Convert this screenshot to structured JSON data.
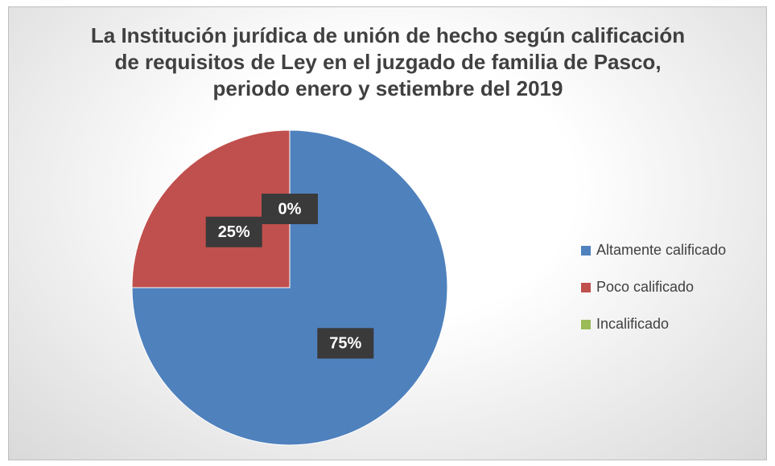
{
  "chart_data": {
    "type": "pie",
    "title": "La Institución jurídica de unión de hecho según calificación de requisitos de Ley en el juzgado de familia de Pasco, periodo enero y setiembre del 2019",
    "categories": [
      "Altamente calificado",
      "Poco calificado",
      "Incalificado"
    ],
    "values": [
      75,
      25,
      0
    ],
    "value_labels": [
      "75%",
      "25%",
      "0%"
    ],
    "colors": [
      "#4f81bd",
      "#c0504d",
      "#9bbb59"
    ],
    "legend": "right"
  }
}
